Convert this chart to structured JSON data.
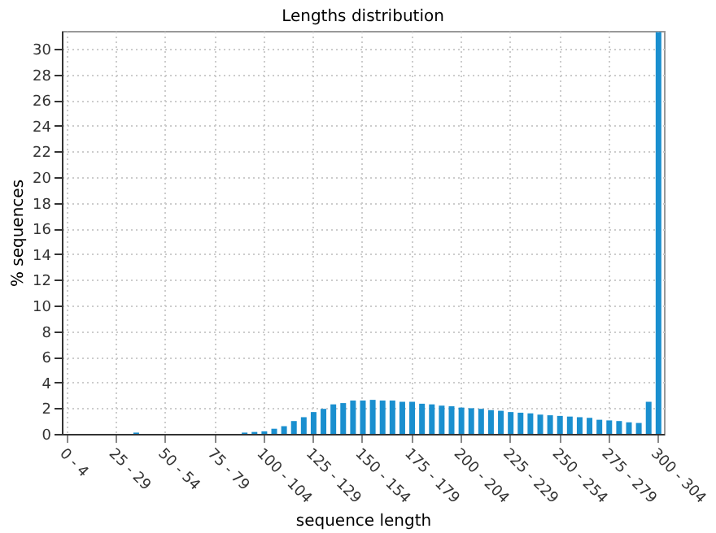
{
  "chart_data": {
    "type": "bar",
    "title": "Lengths distribution",
    "xlabel": "sequence length",
    "ylabel": "% sequences",
    "categories": [
      "0 - 4",
      null,
      null,
      null,
      null,
      "25 - 29",
      null,
      null,
      null,
      null,
      "50 - 54",
      null,
      null,
      null,
      null,
      "75 - 79",
      null,
      null,
      null,
      null,
      "100 - 104",
      null,
      null,
      null,
      null,
      "125 - 129",
      null,
      null,
      null,
      null,
      "150 - 154",
      null,
      null,
      null,
      null,
      "175 - 179",
      null,
      null,
      null,
      null,
      "200 - 204",
      null,
      null,
      null,
      null,
      "225 - 229",
      null,
      null,
      null,
      null,
      "250 - 254",
      null,
      null,
      null,
      null,
      "275 - 279",
      null,
      null,
      null,
      null,
      "300 - 304"
    ],
    "values": [
      0,
      0,
      0,
      0,
      0,
      0,
      0,
      0.1,
      0,
      0,
      0,
      0,
      0,
      0,
      0,
      0,
      0,
      0,
      0.1,
      0.15,
      0.2,
      0.4,
      0.6,
      1.0,
      1.3,
      1.7,
      1.95,
      2.3,
      2.4,
      2.6,
      2.6,
      2.65,
      2.6,
      2.6,
      2.5,
      2.5,
      2.35,
      2.3,
      2.2,
      2.15,
      2.05,
      2.0,
      1.95,
      1.85,
      1.8,
      1.7,
      1.65,
      1.6,
      1.5,
      1.45,
      1.4,
      1.35,
      1.3,
      1.25,
      1.1,
      1.05,
      1.0,
      0.9,
      0.85,
      2.5,
      31.3
    ],
    "color": "#1a8fcf",
    "ylim": [
      0,
      31.4
    ],
    "yticks": [
      0,
      2,
      4,
      6,
      8,
      10,
      12,
      14,
      16,
      18,
      20,
      22,
      24,
      26,
      28,
      30
    ],
    "grid": true
  }
}
